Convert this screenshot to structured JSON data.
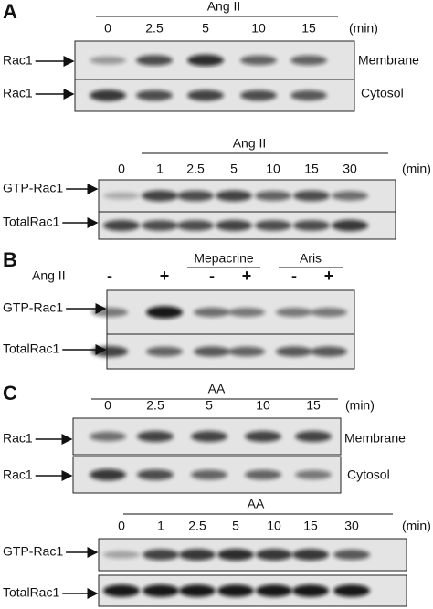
{
  "panels": [
    {
      "label": "A",
      "blocks": [
        {
          "treatment": "Ang II",
          "timepoints": [
            "0",
            "2.5",
            "5",
            "10",
            "15"
          ],
          "unit": "(min)",
          "rows": [
            {
              "name": "Rac1",
              "location": "Membrane"
            },
            {
              "name": "Rac1",
              "location": "Cytosol"
            }
          ]
        },
        {
          "treatment": "Ang II",
          "timepoints": [
            "0",
            "1",
            "2.5",
            "5",
            "10",
            "15",
            "30"
          ],
          "unit": "(min)",
          "rows": [
            {
              "name": "GTP-Rac1"
            },
            {
              "name": "TotalRac1"
            }
          ]
        }
      ]
    },
    {
      "label": "B",
      "blocks": [
        {
          "treatment": "Ang II",
          "groups": [
            "Mepacrine",
            "Aris"
          ],
          "signs": [
            "-",
            "+",
            "-",
            "+",
            "-",
            "+"
          ],
          "rows": [
            {
              "name": "GTP-Rac1"
            },
            {
              "name": "TotalRac1"
            }
          ]
        }
      ]
    },
    {
      "label": "C",
      "blocks": [
        {
          "treatment": "AA",
          "timepoints": [
            "0",
            "2.5",
            "5",
            "10",
            "15"
          ],
          "unit": "(min)",
          "rows": [
            {
              "name": "Rac1",
              "location": "Membrane"
            },
            {
              "name": "Rac1",
              "location": "Cytosol"
            }
          ]
        },
        {
          "treatment": "AA",
          "timepoints": [
            "0",
            "1",
            "2.5",
            "5",
            "10",
            "15",
            "30"
          ],
          "unit": "(min)",
          "rows": [
            {
              "name": "GTP-Rac1"
            },
            {
              "name": "TotalRac1"
            }
          ]
        }
      ]
    }
  ]
}
